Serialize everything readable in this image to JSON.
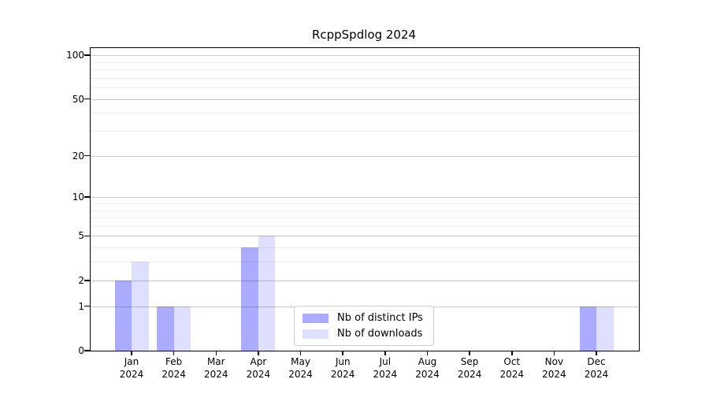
{
  "title": "RcppSpdlog 2024",
  "chart_data": {
    "type": "bar",
    "title": "RcppSpdlog 2024",
    "yscale": "log1p",
    "ylim": [
      0,
      112
    ],
    "y_ticks": [
      0,
      1,
      2,
      5,
      10,
      20,
      50,
      100
    ],
    "y_tick_labels": [
      "0",
      "1",
      "2",
      "5",
      "10",
      "20",
      "50",
      "100"
    ],
    "y_minor_gridlines": [
      3,
      4,
      6,
      7,
      8,
      9,
      30,
      40,
      60,
      70,
      80,
      90
    ],
    "months": [
      "Jan",
      "Feb",
      "Mar",
      "Apr",
      "May",
      "Jun",
      "Jul",
      "Aug",
      "Sep",
      "Oct",
      "Nov",
      "Dec"
    ],
    "year_label": "2024",
    "series": [
      {
        "name": "Nb of distinct IPs",
        "color": "rgba(0,0,255,0.33)",
        "values": [
          2,
          1,
          0,
          4,
          0,
          0,
          0,
          0,
          0,
          0,
          0,
          1
        ]
      },
      {
        "name": "Nb of downloads",
        "color": "rgba(0,0,255,0.125)",
        "values": [
          3,
          1,
          0,
          5,
          0,
          0,
          0,
          0,
          0,
          0,
          0,
          1
        ]
      }
    ],
    "grid": true,
    "legend_position": "bottom-center"
  },
  "colors": {
    "background": "#ffffff",
    "axis_frame": "#000000",
    "gridline_major": "#c9c9c9",
    "gridline_minor": "#ececec",
    "bar_distinct_ips_rendered": "#abaaf7",
    "bar_downloads_rendered": "#dcdcf9",
    "legend_border": "#cccccc",
    "text": "#000000"
  }
}
